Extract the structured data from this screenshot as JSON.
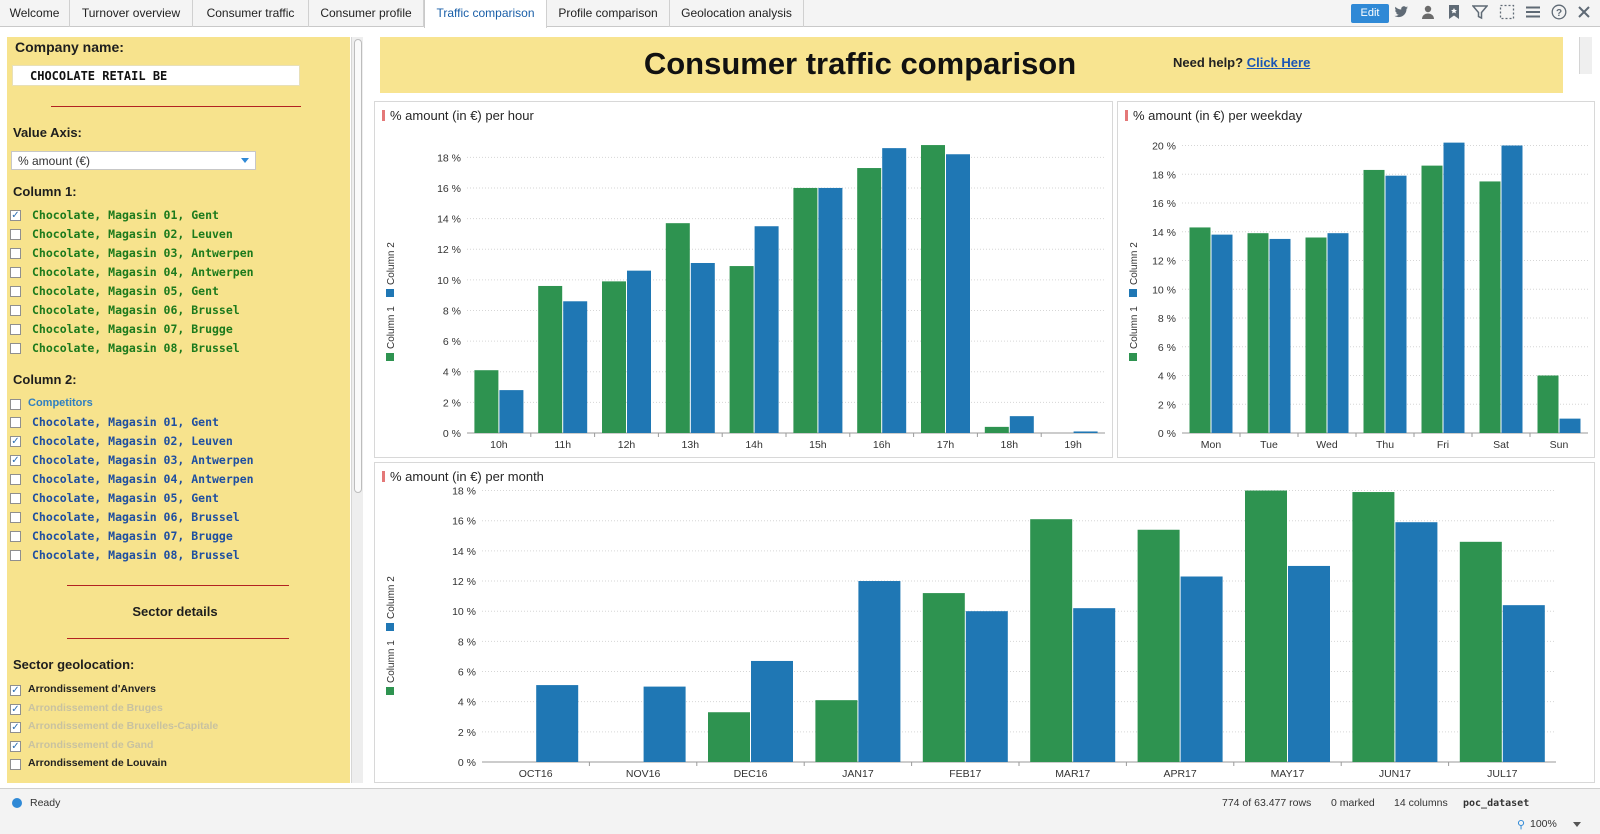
{
  "tabs": [
    {
      "label": "Welcome",
      "active": false
    },
    {
      "label": "Turnover overview",
      "active": false
    },
    {
      "label": "Consumer traffic",
      "active": false
    },
    {
      "label": "Consumer profile",
      "active": false
    },
    {
      "label": "Traffic comparison",
      "active": true
    },
    {
      "label": "Profile comparison",
      "active": false
    },
    {
      "label": "Geolocation analysis",
      "active": false
    }
  ],
  "toolbar": {
    "edit_label": "Edit",
    "icons": [
      "twitter-icon",
      "user-icon",
      "bookmark-icon",
      "filter-icon",
      "selection-icon",
      "menu-icon",
      "help-icon",
      "close-icon"
    ]
  },
  "filters": {
    "company_label": "Company name:",
    "company_value": "CHOCOLATE RETAIL BE",
    "value_axis_label": "Value Axis:",
    "value_axis_selected": "% amount (€)",
    "column1_label": "Column 1:",
    "column1_items": [
      {
        "label": "Chocolate, Magasin 01, Gent",
        "checked": true
      },
      {
        "label": "Chocolate, Magasin 02, Leuven",
        "checked": false
      },
      {
        "label": "Chocolate, Magasin 03, Antwerpen",
        "checked": false
      },
      {
        "label": "Chocolate, Magasin 04, Antwerpen",
        "checked": false
      },
      {
        "label": "Chocolate, Magasin 05, Gent",
        "checked": false
      },
      {
        "label": "Chocolate, Magasin 06, Brussel",
        "checked": false
      },
      {
        "label": "Chocolate, Magasin 07, Brugge",
        "checked": false
      },
      {
        "label": "Chocolate, Magasin 08, Brussel",
        "checked": false
      }
    ],
    "column2_label": "Column 2:",
    "competitors_label": "Competitors",
    "column2_items": [
      {
        "label": "Chocolate, Magasin 01, Gent",
        "checked": false
      },
      {
        "label": "Chocolate, Magasin 02, Leuven",
        "checked": true
      },
      {
        "label": "Chocolate, Magasin 03, Antwerpen",
        "checked": true
      },
      {
        "label": "Chocolate, Magasin 04, Antwerpen",
        "checked": false
      },
      {
        "label": "Chocolate, Magasin 05, Gent",
        "checked": false
      },
      {
        "label": "Chocolate, Magasin 06, Brussel",
        "checked": false
      },
      {
        "label": "Chocolate, Magasin 07, Brugge",
        "checked": false
      },
      {
        "label": "Chocolate, Magasin 08, Brussel",
        "checked": false
      }
    ],
    "sector_details_label": "Sector details",
    "sector_geo_label": "Sector geolocation:",
    "sector_items": [
      {
        "label": "Arrondissement d'Anvers",
        "checked": true,
        "dimmed": false
      },
      {
        "label": "Arrondissement de Bruges",
        "checked": true,
        "dimmed": true
      },
      {
        "label": "Arrondissement de Bruxelles-Capitale",
        "checked": true,
        "dimmed": true
      },
      {
        "label": "Arrondissement de Gand",
        "checked": true,
        "dimmed": true
      },
      {
        "label": "Arrondissement de Louvain",
        "checked": false,
        "dimmed": false
      }
    ]
  },
  "header": {
    "title": "Consumer traffic comparison",
    "help_text": "Need help?",
    "help_link": "Click Here"
  },
  "colors": {
    "column1": "#2e9350",
    "column2": "#1f77b4",
    "panel_bg": "#f7e38d",
    "accent": "#2f89d6"
  },
  "chart_data": [
    {
      "type": "bar",
      "title": "% amount (in €) per hour",
      "categories": [
        "10h",
        "11h",
        "12h",
        "13h",
        "14h",
        "15h",
        "16h",
        "17h",
        "18h",
        "19h"
      ],
      "series": [
        {
          "name": "Column 1",
          "values": [
            4.1,
            9.6,
            9.9,
            13.7,
            10.9,
            16.0,
            17.3,
            18.8,
            0.4,
            0.0
          ]
        },
        {
          "name": "Column 2",
          "values": [
            2.8,
            8.6,
            10.6,
            11.1,
            13.5,
            16.0,
            18.6,
            18.2,
            1.1,
            0.1
          ]
        }
      ],
      "ylim": [
        0,
        19
      ],
      "yticks": [
        0,
        2,
        4,
        6,
        8,
        10,
        12,
        14,
        16,
        18
      ],
      "legend_label": "Column 1 ■ Column 2"
    },
    {
      "type": "bar",
      "title": "% amount (in €) per weekday",
      "categories": [
        "Mon",
        "Tue",
        "Wed",
        "Thu",
        "Fri",
        "Sat",
        "Sun"
      ],
      "series": [
        {
          "name": "Column 1",
          "values": [
            14.3,
            13.9,
            13.6,
            18.3,
            18.6,
            17.5,
            4.0
          ]
        },
        {
          "name": "Column 2",
          "values": [
            13.8,
            13.5,
            13.9,
            17.9,
            20.2,
            20.0,
            1.0
          ]
        }
      ],
      "ylim": [
        0,
        20.8
      ],
      "yticks": [
        0,
        2,
        4,
        6,
        8,
        10,
        12,
        14,
        16,
        18,
        20
      ],
      "legend_label": "Column 1 ■ Column 2"
    },
    {
      "type": "bar",
      "title": "% amount (in €) per month",
      "categories": [
        "OCT16",
        "NOV16",
        "DEC16",
        "JAN17",
        "FEB17",
        "MAR17",
        "APR17",
        "MAY17",
        "JUN17",
        "JUL17"
      ],
      "series": [
        {
          "name": "Column 1",
          "values": [
            0.0,
            0.0,
            3.3,
            4.1,
            11.2,
            16.1,
            15.4,
            18.0,
            17.9,
            14.6
          ]
        },
        {
          "name": "Column 2",
          "values": [
            5.1,
            5.0,
            6.7,
            12.0,
            10.0,
            10.2,
            12.3,
            13.0,
            15.9,
            10.4
          ]
        }
      ],
      "ylim": [
        0,
        18.5
      ],
      "yticks": [
        0,
        2,
        4,
        6,
        8,
        10,
        12,
        14,
        16,
        18
      ],
      "legend_label": "Column 1 ■ Column 2"
    }
  ],
  "status": {
    "state": "Ready",
    "rows": "774 of 63.477 rows",
    "marked": "0 marked",
    "columns": "14 columns",
    "dataset": "poc_dataset",
    "zoom": "100%"
  }
}
